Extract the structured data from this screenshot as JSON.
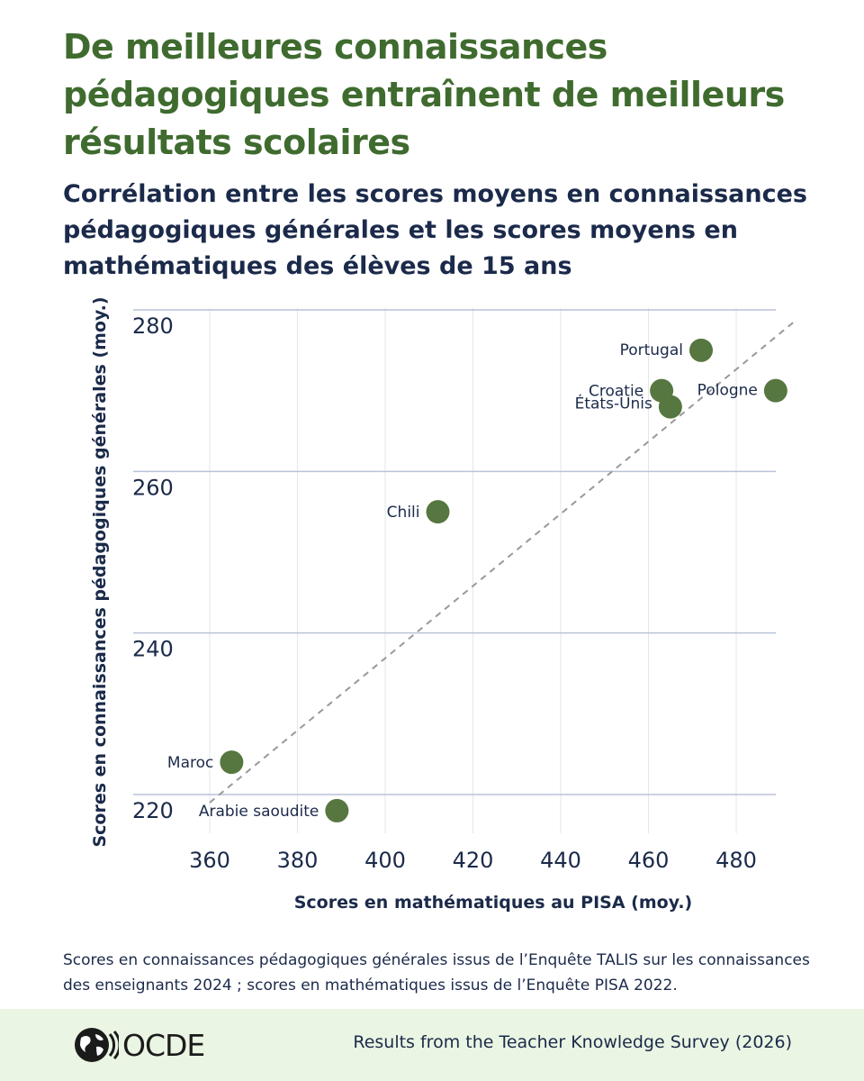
{
  "title": "De meilleures connaissances pédagogiques entraînent de meilleurs résultats scolaires",
  "subtitle": "Corrélation entre les scores moyens en connaissances pédagogiques générales et les scores moyens en mathématiques des élèves de 15 ans",
  "chart_data": {
    "type": "scatter",
    "xlabel": "Scores en mathématiques au PISA (moy.)",
    "ylabel": "Scores en connaissances pédagogiques générales (moy.)",
    "xlim": [
      360,
      490
    ],
    "ylim": [
      220,
      280
    ],
    "xticks": [
      360,
      380,
      400,
      420,
      440,
      460,
      480
    ],
    "yticks": [
      220,
      240,
      260,
      280
    ],
    "grid": true,
    "point_color": "#56773f",
    "trendline": {
      "style": "dashed",
      "color": "#999999",
      "from": [
        360,
        219
      ],
      "to": [
        490,
        280
      ]
    },
    "points": [
      {
        "label": "Portugal",
        "x": 472,
        "y": 275
      },
      {
        "label": "Croatie",
        "x": 463,
        "y": 270
      },
      {
        "label": "États-Unis",
        "x": 465,
        "y": 268
      },
      {
        "label": "Pologne",
        "x": 489,
        "y": 270
      },
      {
        "label": "Chili",
        "x": 412,
        "y": 255
      },
      {
        "label": "Maroc",
        "x": 365,
        "y": 224
      },
      {
        "label": "Arabie saoudite",
        "x": 389,
        "y": 218
      }
    ]
  },
  "note": "Scores en connaissances pédagogiques générales issus de l’Enquête TALIS sur les connaissances des enseignants 2024 ; scores en mathématiques issus de l’Enquête PISA 2022.",
  "footer": {
    "logo_text": "OCDE",
    "source": "Results from the Teacher Knowledge Survey (2026)"
  },
  "colors": {
    "title": "#3f6b2f",
    "text": "#1b2a4a",
    "footer_bg": "#eaf5e3"
  }
}
